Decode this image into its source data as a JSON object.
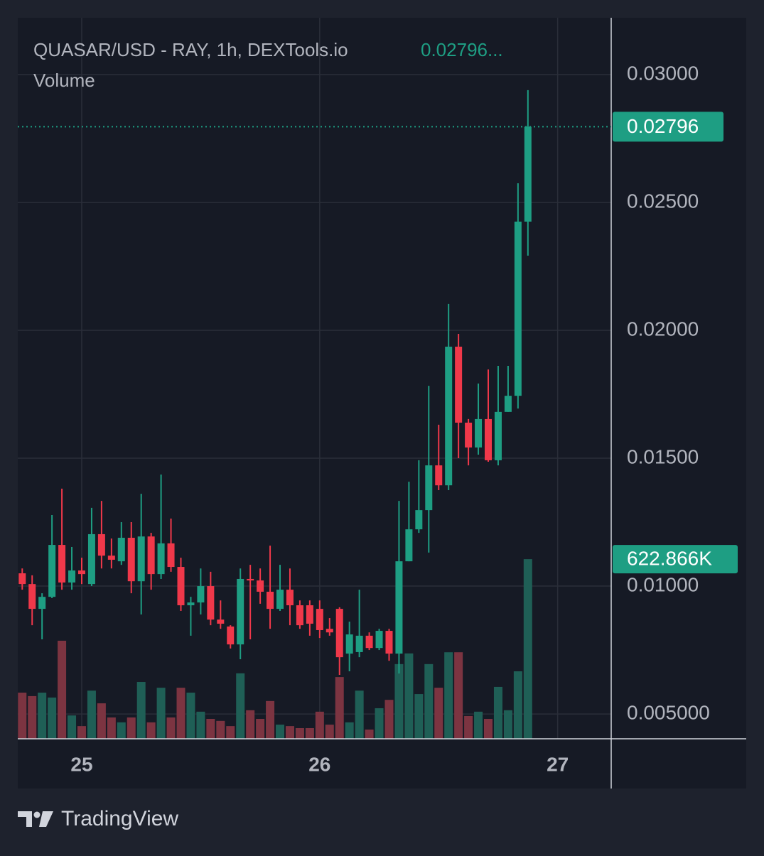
{
  "chart_data": {
    "type": "candlestick",
    "title": "QUASAR/USD - RAY, 1h, DEXTools.io",
    "title_value": "0.02796...",
    "brand": "TradingView",
    "up_color": "#1e9e83",
    "down_color": "#f0384a",
    "x": [
      -6,
      -5,
      -4,
      -3,
      -2,
      -1,
      0,
      1,
      2,
      3,
      4,
      5,
      6,
      7,
      8,
      9,
      10,
      11,
      12,
      13,
      14,
      15,
      16,
      17,
      18,
      19,
      20,
      21,
      22,
      23,
      24,
      25,
      26,
      27,
      28,
      29,
      30,
      31,
      32,
      33,
      34,
      35,
      36,
      37,
      38,
      39,
      40,
      41,
      42,
      43,
      44,
      45
    ],
    "open": [
      0.0105,
      0.01008,
      0.00911,
      0.00958,
      0.01161,
      0.01014,
      0.01061,
      0.01008,
      0.01203,
      0.01119,
      0.01097,
      0.01189,
      0.01019,
      0.01194,
      0.01047,
      0.01167,
      0.01075,
      0.00925,
      0.00936,
      0.01,
      0.00869,
      0.00842,
      0.00772,
      0.01028,
      0.01022,
      0.00978,
      0.00911,
      0.00986,
      0.00925,
      0.00925,
      0.00911,
      0.00833,
      0.00911,
      0.00736,
      0.00742,
      0.00806,
      0.00758,
      0.00825,
      0.00736,
      0.01097,
      0.01222,
      0.01297,
      0.01472,
      0.01394,
      0.01936,
      0.01639,
      0.01542,
      0.01653,
      0.01492,
      0.01681,
      0.01744,
      0.02425
    ],
    "high": [
      0.01069,
      0.01042,
      0.00972,
      0.01278,
      0.01381,
      0.01153,
      0.01111,
      0.01306,
      0.01333,
      0.01186,
      0.0125,
      0.0125,
      0.01361,
      0.01208,
      0.01436,
      0.01264,
      0.01111,
      0.00958,
      0.01069,
      0.01056,
      0.00944,
      0.00847,
      0.01069,
      0.01083,
      0.01069,
      0.01158,
      0.01083,
      0.01069,
      0.00944,
      0.00944,
      0.00944,
      0.00875,
      0.00917,
      0.00861,
      0.00986,
      0.00819,
      0.00833,
      0.00833,
      0.01333,
      0.01408,
      0.01492,
      0.01783,
      0.01631,
      0.02103,
      0.01986,
      0.01653,
      0.01792,
      0.01847,
      0.01861,
      0.01861,
      0.02575,
      0.02939
    ],
    "low": [
      0.00986,
      0.00847,
      0.00792,
      0.00953,
      0.00986,
      0.00986,
      0.01008,
      0.01,
      0.01069,
      0.01069,
      0.01083,
      0.00972,
      0.00889,
      0.00986,
      0.01028,
      0.01056,
      0.00903,
      0.00806,
      0.00889,
      0.00847,
      0.00833,
      0.00756,
      0.00714,
      0.00792,
      0.00931,
      0.00833,
      0.00903,
      0.00847,
      0.00833,
      0.00806,
      0.00797,
      0.00806,
      0.00653,
      0.00667,
      0.00722,
      0.0075,
      0.0075,
      0.00708,
      0.00658,
      0.01097,
      0.01208,
      0.01131,
      0.01375,
      0.01375,
      0.015,
      0.01472,
      0.01514,
      0.01486,
      0.01472,
      0.01681,
      0.01694,
      0.02292
    ],
    "close": [
      0.01008,
      0.00911,
      0.00958,
      0.01161,
      0.01014,
      0.01061,
      0.01047,
      0.01203,
      0.01119,
      0.01103,
      0.01189,
      0.01019,
      0.01194,
      0.01047,
      0.01167,
      0.01075,
      0.00925,
      0.00936,
      0.01,
      0.00869,
      0.00853,
      0.00772,
      0.01028,
      0.01022,
      0.00978,
      0.00911,
      0.00986,
      0.00925,
      0.00847,
      0.00853,
      0.00828,
      0.00819,
      0.00722,
      0.00811,
      0.00806,
      0.00758,
      0.00825,
      0.00736,
      0.01097,
      0.01222,
      0.01297,
      0.01472,
      0.01394,
      0.01936,
      0.01639,
      0.01542,
      0.01653,
      0.01492,
      0.01681,
      0.01744,
      0.02425,
      0.02796
    ],
    "volume": {
      "name": "Volume",
      "values": [
        160000,
        148000,
        160000,
        143000,
        340000,
        81000,
        44000,
        167000,
        123000,
        74000,
        57000,
        74000,
        197000,
        57000,
        177000,
        74000,
        177000,
        160000,
        94000,
        69000,
        62000,
        44000,
        227000,
        99000,
        69000,
        131000,
        49000,
        44000,
        37000,
        37000,
        94000,
        49000,
        214000,
        57000,
        167000,
        32000,
        106000,
        135000,
        259000,
        296000,
        155000,
        259000,
        177000,
        300000,
        300000,
        79000,
        94000,
        69000,
        180000,
        99000,
        234000,
        622866
      ],
      "last_label": "622.866K",
      "up_color": "#1f5f56",
      "down_color": "#7c3441"
    },
    "xlim": [
      -6.45,
      53.4
    ],
    "xticks": [
      {
        "value": 0,
        "label": "25"
      },
      {
        "value": 24,
        "label": "26"
      },
      {
        "value": 48,
        "label": "27"
      }
    ],
    "ylim": [
      0.00403,
      0.03222
    ],
    "yticks": [
      {
        "value": 0.005,
        "label": "0.005000"
      },
      {
        "value": 0.01,
        "label": "0.01000"
      },
      {
        "value": 0.015,
        "label": "0.01500"
      },
      {
        "value": 0.02,
        "label": "0.02000"
      },
      {
        "value": 0.025,
        "label": "0.02500"
      },
      {
        "value": 0.03,
        "label": "0.03000"
      }
    ],
    "y2lim": [
      0,
      2500000
    ],
    "grid": true
  }
}
